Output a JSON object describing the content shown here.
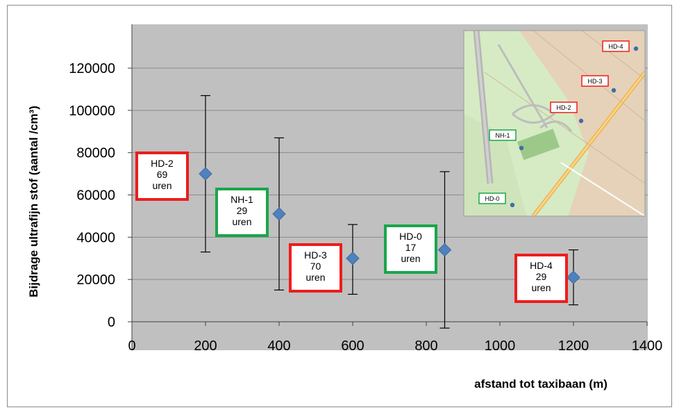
{
  "chart_data": {
    "type": "scatter",
    "title": "",
    "xlabel": "afstand tot taxibaan (m)",
    "ylabel": "Bijdrage ultrafijn stof (aantal /cm³)",
    "xlim": [
      0,
      1400
    ],
    "ylim": [
      0,
      130000
    ],
    "x_ticks": [
      "0",
      "200",
      "400",
      "600",
      "800",
      "1000",
      "1200",
      "1400"
    ],
    "y_ticks": [
      "0",
      "20000",
      "40000",
      "60000",
      "80000",
      "100000",
      "120000"
    ],
    "grid": "horizontal",
    "legend": "none",
    "series": [
      {
        "points": [
          {
            "x": 200,
            "y": 70000,
            "err_low": 33000,
            "err_high": 107000
          },
          {
            "x": 400,
            "y": 51000,
            "err_low": 15000,
            "err_high": 87000
          },
          {
            "x": 600,
            "y": 30000,
            "err_low": 13000,
            "err_high": 46000
          },
          {
            "x": 850,
            "y": 34000,
            "err_low": -3000,
            "err_high": 71000
          },
          {
            "x": 1200,
            "y": 21000,
            "err_low": 8000,
            "err_high": 34000
          }
        ]
      }
    ],
    "annotations": [
      {
        "lines": [
          "HD-2",
          "69",
          "uren"
        ],
        "color": "#ee1c1c"
      },
      {
        "lines": [
          "NH-1",
          "29",
          "uren"
        ],
        "color": "#1aa64a"
      },
      {
        "lines": [
          "HD-3",
          "70",
          "uren"
        ],
        "color": "#ee1c1c"
      },
      {
        "lines": [
          "HD-0",
          "17",
          "uren"
        ],
        "color": "#1aa64a"
      },
      {
        "lines": [
          "HD-4",
          "29",
          "uren"
        ],
        "color": "#ee1c1c"
      }
    ],
    "inset_map_labels": [
      {
        "text": "HD-4",
        "color": "#ee1c1c"
      },
      {
        "text": "HD-3",
        "color": "#ee1c1c"
      },
      {
        "text": "HD-2",
        "color": "#ee1c1c"
      },
      {
        "text": "NH-1",
        "color": "#1aa64a"
      },
      {
        "text": "HD-0",
        "color": "#1aa64a"
      }
    ],
    "colors": {
      "plot_bg": "#c0c0c0",
      "marker": "#4f81bd",
      "gridline": "#8c8c8c",
      "red": "#ee1c1c",
      "green": "#1aa64a"
    }
  }
}
